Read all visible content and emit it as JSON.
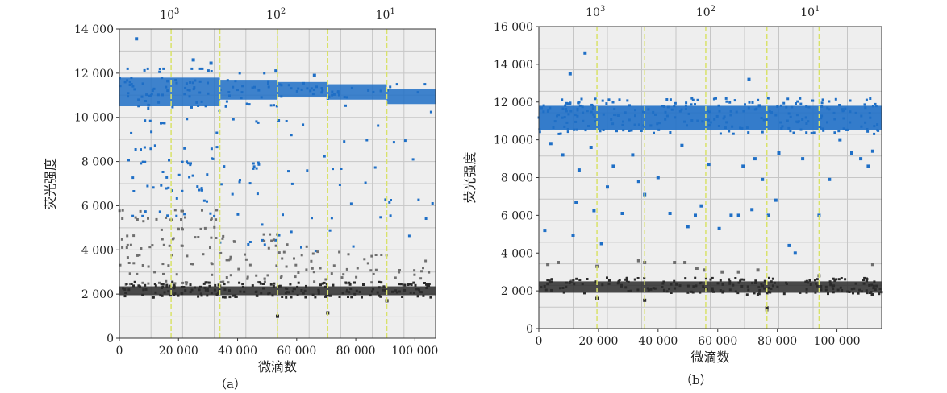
{
  "figures": [
    {
      "caption": "（a）"
    },
    {
      "caption": "（b）"
    }
  ],
  "colors": {
    "plot_bg": "#eeeeee",
    "grid": "#c6c6c6",
    "blue": "#1f6fc6",
    "gray": "#6f6f6f",
    "dark": "#2b2b2b",
    "divider": "#d9e26a"
  },
  "chart_data": [
    {
      "type": "scatter",
      "title": "",
      "xlabel": "微滴数",
      "ylabel": "荧光强度",
      "xlim": [
        0,
        107000
      ],
      "ylim": [
        0,
        14000
      ],
      "x_ticks": [
        0,
        20000,
        40000,
        60000,
        80000,
        100000
      ],
      "x_tick_labels": [
        "0",
        "20 000",
        "40 000",
        "60 000",
        "80 000",
        "100 000"
      ],
      "y_ticks": [
        0,
        2000,
        4000,
        6000,
        8000,
        10000,
        12000,
        14000
      ],
      "y_tick_labels": [
        "0",
        "2 000",
        "4 000",
        "6 000",
        "8 000",
        "10 000",
        "12 000",
        "14 000"
      ],
      "top_labels": [
        {
          "base": "10",
          "exp": "3",
          "at": 17000
        },
        {
          "base": "10",
          "exp": "2",
          "at": 53000
        },
        {
          "base": "10",
          "exp": "1",
          "at": 90000
        }
      ],
      "dividers": [
        17500,
        34000,
        53500,
        70500,
        90500
      ],
      "grid": true,
      "series": [
        {
          "name": "",
          "color": "blue",
          "sections": [
            {
              "x": [
                0,
                34000
              ],
              "y": [
                5600,
                12200
              ],
              "band": [
                10500,
                11800
              ],
              "density": 0.8
            },
            {
              "x": [
                34000,
                53500
              ],
              "y": [
                4300,
                12000
              ],
              "band": [
                10800,
                11700
              ],
              "density": 0.55
            },
            {
              "x": [
                53500,
                70500
              ],
              "y": [
                4100,
                11900
              ],
              "band": [
                10900,
                11600
              ],
              "density": 0.4
            },
            {
              "x": [
                70500,
                90500
              ],
              "y": [
                4100,
                11800
              ],
              "band": [
                10800,
                11500
              ],
              "density": 0.3
            },
            {
              "x": [
                90500,
                107000
              ],
              "y": [
                4100,
                11500
              ],
              "band": [
                10600,
                11300
              ],
              "density": 0.2
            }
          ],
          "outliers": [
            [
              5800,
              13550
            ],
            [
              25000,
              12600
            ],
            [
              31000,
              12450
            ],
            [
              53000,
              12100
            ],
            [
              66000,
              11900
            ]
          ]
        },
        {
          "name": "",
          "color": "gray",
          "sections": [
            {
              "x": [
                0,
                34000
              ],
              "y": [
                2500,
                5800
              ],
              "density": 0.8
            },
            {
              "x": [
                34000,
                53500
              ],
              "y": [
                2500,
                4700
              ],
              "density": 0.55
            },
            {
              "x": [
                53500,
                70500
              ],
              "y": [
                2500,
                4300
              ],
              "density": 0.4
            },
            {
              "x": [
                70500,
                90500
              ],
              "y": [
                2500,
                3900
              ],
              "density": 0.3
            },
            {
              "x": [
                90500,
                107000
              ],
              "y": [
                2500,
                3600
              ],
              "density": 0.2
            }
          ]
        },
        {
          "name": "",
          "color": "dark",
          "band": [
            1950,
            2350
          ],
          "outliers": [
            [
              53500,
              1000
            ],
            [
              70500,
              1150
            ],
            [
              90500,
              1700
            ]
          ]
        }
      ]
    },
    {
      "type": "scatter",
      "title": "",
      "xlabel": "微滴数",
      "ylabel": "荧光强度",
      "xlim": [
        0,
        115000
      ],
      "ylim": [
        0,
        16000
      ],
      "x_ticks": [
        0,
        20000,
        40000,
        60000,
        80000,
        100000
      ],
      "x_tick_labels": [
        "0",
        "20 000",
        "40 000",
        "60 000",
        "80 000",
        "100 000"
      ],
      "y_ticks": [
        0,
        2000,
        4000,
        6000,
        8000,
        10000,
        12000,
        14000,
        16000
      ],
      "y_tick_labels": [
        "0",
        "2 000",
        "4 000",
        "6 000",
        "8 000",
        "10 000",
        "12 000",
        "14 000",
        "16 000"
      ],
      "top_labels": [
        {
          "base": "10",
          "exp": "3",
          "at": 19000
        },
        {
          "base": "10",
          "exp": "2",
          "at": 56000
        },
        {
          "base": "10",
          "exp": "1",
          "at": 91000
        }
      ],
      "dividers": [
        19500,
        35500,
        56000,
        76500,
        94000
      ],
      "grid": true,
      "series": [
        {
          "name": "",
          "color": "blue",
          "main_band": [
            10500,
            11800
          ],
          "scattered": [
            [
              2000,
              5200
            ],
            [
              4000,
              9800
            ],
            [
              8000,
              9200
            ],
            [
              10500,
              13500
            ],
            [
              11500,
              4950
            ],
            [
              12500,
              6700
            ],
            [
              13500,
              8400
            ],
            [
              15500,
              14600
            ],
            [
              17500,
              9600
            ],
            [
              18500,
              6250
            ],
            [
              21000,
              4500
            ],
            [
              23000,
              7500
            ],
            [
              25000,
              8600
            ],
            [
              28000,
              6100
            ],
            [
              31500,
              9200
            ],
            [
              33500,
              7800
            ],
            [
              35500,
              7100
            ],
            [
              40000,
              8000
            ],
            [
              44000,
              6100
            ],
            [
              48000,
              9700
            ],
            [
              50000,
              5400
            ],
            [
              52500,
              6000
            ],
            [
              54500,
              6500
            ],
            [
              57000,
              8700
            ],
            [
              60500,
              5300
            ],
            [
              64500,
              6000
            ],
            [
              67000,
              6000
            ],
            [
              68500,
              8600
            ],
            [
              70500,
              13200
            ],
            [
              71500,
              6300
            ],
            [
              72500,
              9000
            ],
            [
              74000,
              11800
            ],
            [
              75000,
              7900
            ],
            [
              77000,
              6000
            ],
            [
              79500,
              6800
            ],
            [
              80500,
              9300
            ],
            [
              84000,
              4400
            ],
            [
              86000,
              4000
            ],
            [
              88500,
              9000
            ],
            [
              94000,
              6000
            ],
            [
              97500,
              7900
            ],
            [
              101000,
              10000
            ],
            [
              105000,
              9300
            ],
            [
              108000,
              9000
            ],
            [
              110500,
              8600
            ],
            [
              112000,
              9400
            ]
          ]
        },
        {
          "name": "",
          "color": "gray",
          "scattered": [
            [
              3000,
              3400
            ],
            [
              6500,
              3500
            ],
            [
              11000,
              2500
            ],
            [
              19500,
              3300
            ],
            [
              33500,
              3600
            ],
            [
              35500,
              3500
            ],
            [
              45500,
              3500
            ],
            [
              49000,
              3500
            ],
            [
              53000,
              3200
            ],
            [
              55500,
              3100
            ],
            [
              61500,
              3000
            ],
            [
              67000,
              3000
            ],
            [
              73500,
              3100
            ],
            [
              76500,
              1000
            ],
            [
              94000,
              2800
            ],
            [
              112000,
              3400
            ]
          ]
        },
        {
          "name": "",
          "color": "dark",
          "band": [
            1900,
            2500
          ],
          "outliers": [
            [
              19500,
              1600
            ],
            [
              35500,
              1500
            ],
            [
              76500,
              1100
            ]
          ]
        }
      ]
    }
  ]
}
